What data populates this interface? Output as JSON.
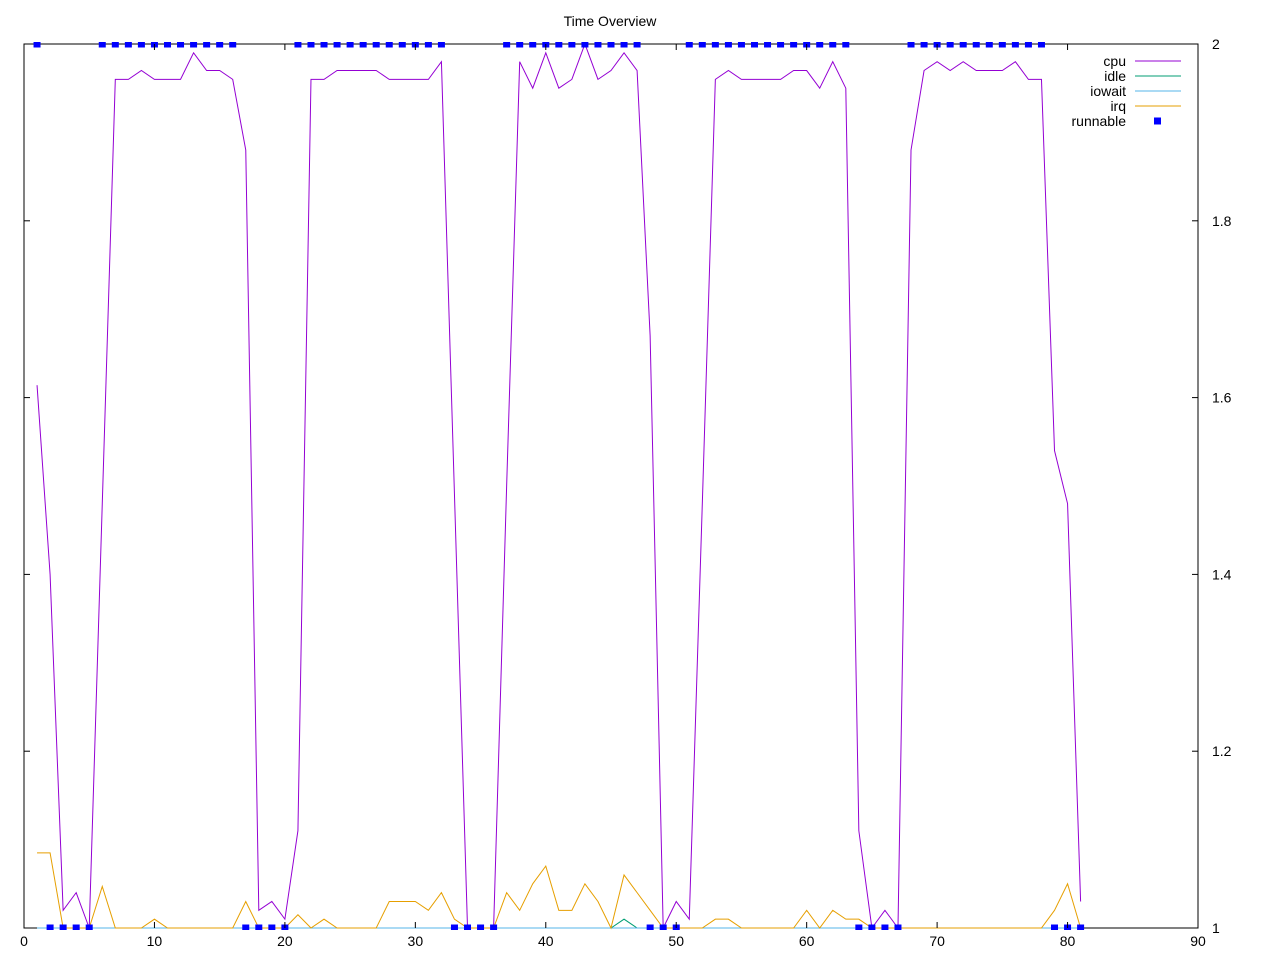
{
  "chart_data": {
    "type": "line",
    "title": "Time Overview",
    "x": [
      1,
      2,
      3,
      4,
      5,
      6,
      7,
      8,
      9,
      10,
      11,
      12,
      13,
      14,
      15,
      16,
      17,
      18,
      19,
      20,
      21,
      22,
      23,
      24,
      25,
      26,
      27,
      28,
      29,
      30,
      31,
      32,
      33,
      34,
      35,
      36,
      37,
      38,
      39,
      40,
      41,
      42,
      43,
      44,
      45,
      46,
      47,
      48,
      49,
      50,
      51,
      52,
      53,
      54,
      55,
      56,
      57,
      58,
      59,
      60,
      61,
      62,
      63,
      64,
      65,
      66,
      67,
      68,
      69,
      70,
      71,
      72,
      73,
      74,
      75,
      76,
      77,
      78,
      79,
      80,
      81
    ],
    "series": [
      {
        "name": "cpu",
        "color": "#9400d3",
        "style": "lines",
        "values": [
          1.614,
          1.4,
          1.02,
          1.04,
          1.0,
          1.48,
          1.96,
          1.96,
          1.97,
          1.96,
          1.96,
          1.96,
          1.99,
          1.97,
          1.97,
          1.96,
          1.88,
          1.02,
          1.03,
          1.01,
          1.11,
          1.96,
          1.96,
          1.97,
          1.97,
          1.97,
          1.97,
          1.96,
          1.96,
          1.96,
          1.96,
          1.98,
          1.49,
          1.0,
          1.0,
          1.0,
          1.5,
          1.98,
          1.95,
          1.99,
          1.95,
          1.96,
          2.0,
          1.96,
          1.97,
          1.99,
          1.97,
          1.67,
          1.0,
          1.03,
          1.01,
          1.48,
          1.96,
          1.97,
          1.96,
          1.96,
          1.96,
          1.96,
          1.97,
          1.97,
          1.95,
          1.98,
          1.95,
          1.11,
          1.0,
          1.02,
          1.0,
          1.88,
          1.97,
          1.98,
          1.97,
          1.98,
          1.97,
          1.97,
          1.97,
          1.98,
          1.96,
          1.96,
          1.54,
          1.48,
          1.03
        ]
      },
      {
        "name": "idle",
        "color": "#009e73",
        "style": "lines",
        "values": [
          1,
          1,
          1,
          1,
          1,
          1,
          1,
          1,
          1,
          1,
          1,
          1,
          1,
          1,
          1,
          1,
          1,
          1,
          1,
          1,
          1,
          1,
          1,
          1,
          1,
          1,
          1,
          1,
          1,
          1,
          1,
          1,
          1,
          1,
          1,
          1,
          1,
          1,
          1,
          1,
          1,
          1,
          1,
          1,
          1,
          1.01,
          1,
          1,
          1,
          1,
          1,
          1,
          1,
          1,
          1,
          1,
          1,
          1,
          1,
          1,
          1,
          1,
          1,
          1,
          1,
          1,
          1,
          1,
          1,
          1,
          1,
          1,
          1,
          1,
          1,
          1,
          1,
          1,
          1,
          1,
          1
        ]
      },
      {
        "name": "iowait",
        "color": "#56b4e9",
        "style": "lines",
        "values": [
          1,
          1,
          1,
          1,
          1,
          1,
          1,
          1,
          1,
          1,
          1,
          1,
          1,
          1,
          1,
          1,
          1,
          1,
          1,
          1,
          1,
          1,
          1,
          1,
          1,
          1,
          1,
          1,
          1,
          1,
          1,
          1,
          1,
          1,
          1,
          1,
          1,
          1,
          1,
          1,
          1,
          1,
          1,
          1,
          1,
          1,
          1,
          1,
          1,
          1,
          1,
          1,
          1,
          1,
          1,
          1,
          1,
          1,
          1,
          1,
          1,
          1,
          1,
          1,
          1,
          1,
          1,
          1,
          1,
          1,
          1,
          1,
          1,
          1,
          1,
          1,
          1,
          1,
          1,
          1,
          1
        ]
      },
      {
        "name": "irq",
        "color": "#e69f00",
        "style": "lines",
        "values": [
          1.085,
          1.085,
          1,
          1,
          1,
          1.047,
          1,
          1,
          1,
          1.01,
          1,
          1,
          1,
          1,
          1,
          1,
          1.03,
          1,
          1,
          1,
          1.015,
          1,
          1.01,
          1,
          1,
          1,
          1,
          1.03,
          1.03,
          1.03,
          1.02,
          1.04,
          1.01,
          1,
          1,
          1,
          1.04,
          1.02,
          1.05,
          1.07,
          1.02,
          1.02,
          1.05,
          1.03,
          1,
          1.06,
          1.04,
          1.02,
          1,
          1,
          1,
          1,
          1.01,
          1.01,
          1,
          1,
          1,
          1,
          1,
          1.02,
          1,
          1.02,
          1.01,
          1.01,
          1,
          1,
          1,
          1,
          1,
          1,
          1,
          1,
          1,
          1,
          1,
          1,
          1,
          1,
          1.02,
          1.05,
          1
        ]
      },
      {
        "name": "runnable",
        "color": "#0000ff",
        "style": "points",
        "values": [
          2,
          1,
          1,
          1,
          1,
          2,
          2,
          2,
          2,
          2,
          2,
          2,
          2,
          2,
          2,
          2,
          1,
          1,
          1,
          1,
          2,
          2,
          2,
          2,
          2,
          2,
          2,
          2,
          2,
          2,
          2,
          2,
          1,
          1,
          1,
          1,
          2,
          2,
          2,
          2,
          2,
          2,
          2,
          2,
          2,
          2,
          2,
          1,
          1,
          1,
          2,
          2,
          2,
          2,
          2,
          2,
          2,
          2,
          2,
          2,
          2,
          2,
          2,
          1,
          1,
          1,
          1,
          2,
          2,
          2,
          2,
          2,
          2,
          2,
          2,
          2,
          2,
          2,
          1,
          1,
          1
        ]
      }
    ],
    "xlim": [
      0,
      90
    ],
    "xticks": [
      0,
      10,
      20,
      30,
      40,
      50,
      60,
      70,
      80,
      90
    ],
    "ylim": [
      1,
      2
    ],
    "yticks": [
      1,
      1.2,
      1.4,
      1.6,
      1.8,
      2
    ],
    "legend": "top-right"
  }
}
